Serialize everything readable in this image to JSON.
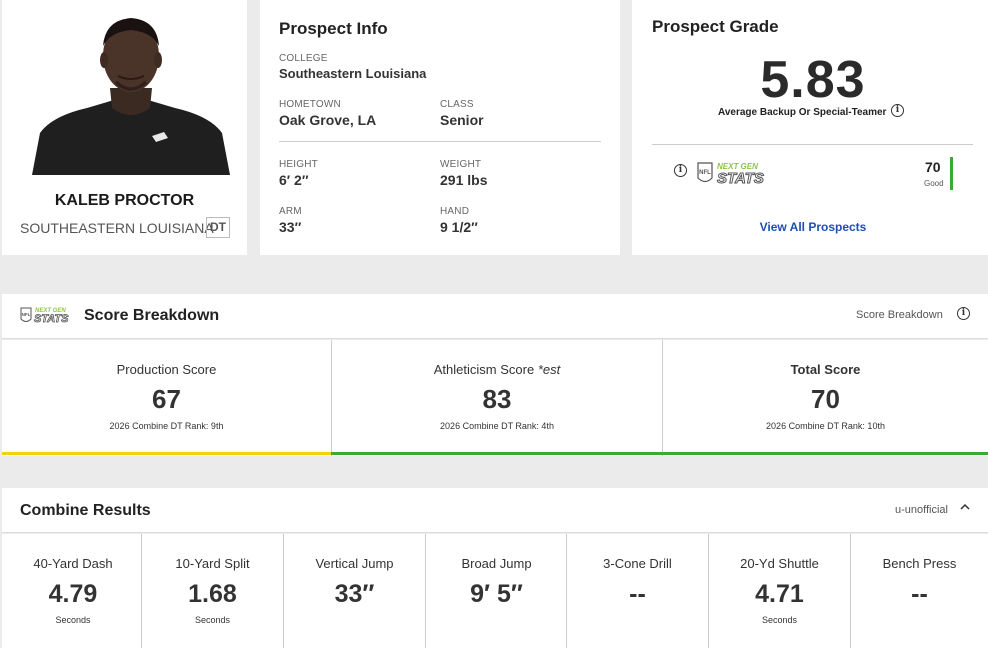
{
  "player": {
    "name": "KALEB PROCTOR",
    "school": "SOUTHEASTERN LOUISIANA",
    "position": "DT"
  },
  "prospect_info": {
    "title": "Prospect Info",
    "college_label": "COLLEGE",
    "college": "Southeastern Louisiana",
    "hometown_label": "HOMETOWN",
    "hometown": "Oak Grove, LA",
    "class_label": "CLASS",
    "class": "Senior",
    "height_label": "HEIGHT",
    "height": "6′ 2″",
    "weight_label": "WEIGHT",
    "weight": "291 lbs",
    "arm_label": "ARM",
    "arm": "33″",
    "hand_label": "HAND",
    "hand": "9 1/2″"
  },
  "prospect_grade": {
    "title": "Prospect Grade",
    "value": "5.83",
    "description": "Average Backup Or Special-Teamer",
    "ngs_logo_text_top": "NEXT GEN",
    "ngs_logo_text_bottom": "STATS",
    "ngs_score": "70",
    "ngs_score_label": "Good",
    "ngs_bar_color": "#3aa935",
    "view_all": "View All Prospects"
  },
  "score_breakdown": {
    "logo_top": "NEXT GEN",
    "logo_bottom": "STATS",
    "title": "Score Breakdown",
    "right_label": "Score Breakdown",
    "columns": [
      {
        "label": "Production Score",
        "value": "67",
        "rank": "2026 Combine DT Rank: 9th",
        "bar_color": "#f2d20c"
      },
      {
        "label": "Athleticism Score *est",
        "value": "83",
        "rank": "2026 Combine DT Rank: 4th",
        "bar_color": "#3aa935"
      },
      {
        "label": "Total Score",
        "value": "70",
        "rank": "2026 Combine DT Rank: 10th",
        "bar_color": "#3aa935"
      }
    ]
  },
  "combine": {
    "title": "Combine Results",
    "status": "u-unofficial",
    "drills": [
      {
        "name": "40-Yard Dash",
        "value": "4.79",
        "unit": "Seconds"
      },
      {
        "name": "10-Yard Split",
        "value": "1.68",
        "unit": "Seconds"
      },
      {
        "name": "Vertical Jump",
        "value": "33″",
        "unit": ""
      },
      {
        "name": "Broad Jump",
        "value": "9′ 5″",
        "unit": ""
      },
      {
        "name": "3-Cone Drill",
        "value": "--",
        "unit": ""
      },
      {
        "name": "20-Yd Shuttle",
        "value": "4.71",
        "unit": "Seconds"
      },
      {
        "name": "Bench Press",
        "value": "--",
        "unit": ""
      }
    ]
  },
  "icons": {
    "info": "info-circle-icon",
    "chevron": "chevron-up-icon",
    "ngs_logo": "next-gen-stats-logo",
    "headshot": "player-headshot"
  }
}
